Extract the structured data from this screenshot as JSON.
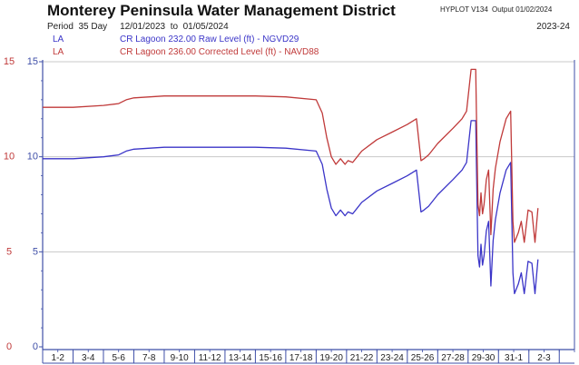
{
  "header": {
    "title": "Monterey Peninsula Water Management District",
    "program": "HYPLOT V134",
    "output": "Output 01/02/2024",
    "period_label": "Period",
    "period_length": "35 Day",
    "period_start": "12/01/2023",
    "period_to": "to",
    "period_end": "01/05/2024",
    "season": "2023-24"
  },
  "colors": {
    "raw": "#3b35c8",
    "corrected": "#c03a3a",
    "axis": "#3f4fa8",
    "grid": "#c8c8c8"
  },
  "chart_data": {
    "type": "line",
    "x_unit": "day index (0 = Dec 1 2023)",
    "xlim": [
      0,
      35
    ],
    "ylim": [
      0,
      15
    ],
    "left_ticks": [
      "0",
      "5",
      "10",
      "15"
    ],
    "inner_ticks": [
      "0",
      "5",
      "10",
      "15"
    ],
    "x_tick_labels": [
      "1-2",
      "3-4",
      "5-6",
      "7-8",
      "9-10",
      "11-12",
      "13-14",
      "15-16",
      "17-18",
      "19-20",
      "21-22",
      "23-24",
      "25-26",
      "27-28",
      "29-30",
      "31-1",
      "2-3"
    ],
    "grid": true,
    "legend_position": "top-left",
    "series": [
      {
        "name": "LA",
        "label": "CR Lagoon  232.00 Raw Level (ft) - NGVD29",
        "color": "#3b35c8",
        "x": [
          0,
          2,
          4,
          5,
          5.5,
          6,
          8,
          10,
          12,
          14,
          16,
          18,
          18.4,
          18.7,
          19,
          19.3,
          19.6,
          19.9,
          20.1,
          20.4,
          20.7,
          21,
          22,
          23,
          24,
          24.6,
          24.9,
          25.1,
          25.4,
          26,
          27,
          27.6,
          27.9,
          28.2,
          28.5,
          28.55,
          28.65,
          28.75,
          28.85,
          28.95,
          29.05,
          29.2,
          29.35,
          29.5,
          29.65,
          29.8,
          30.1,
          30.5,
          30.8,
          30.95,
          31.05,
          31.3,
          31.5,
          31.7,
          31.95,
          32.2,
          32.4,
          32.6
        ],
        "y": [
          9.9,
          9.9,
          10.0,
          10.1,
          10.3,
          10.4,
          10.5,
          10.5,
          10.5,
          10.5,
          10.45,
          10.3,
          9.6,
          8.3,
          7.3,
          6.9,
          7.2,
          6.9,
          7.1,
          7.0,
          7.3,
          7.6,
          8.2,
          8.6,
          9.0,
          9.3,
          7.1,
          7.2,
          7.4,
          8.0,
          8.8,
          9.3,
          9.7,
          11.9,
          11.9,
          9.5,
          4.8,
          4.2,
          5.4,
          4.3,
          4.8,
          6.1,
          6.6,
          3.2,
          5.6,
          6.7,
          8.1,
          9.3,
          9.7,
          3.9,
          2.8,
          3.3,
          3.9,
          2.8,
          4.5,
          4.4,
          2.8,
          4.6
        ]
      },
      {
        "name": "LA",
        "label": "CR Lagoon  236.00 Corrected Level (ft) - NAVD88",
        "color": "#c03a3a",
        "x": [
          0,
          2,
          4,
          5,
          5.5,
          6,
          8,
          10,
          12,
          14,
          16,
          18,
          18.4,
          18.7,
          19,
          19.3,
          19.6,
          19.9,
          20.1,
          20.4,
          20.7,
          21,
          22,
          23,
          24,
          24.6,
          24.9,
          25.1,
          25.4,
          26,
          27,
          27.6,
          27.9,
          28.2,
          28.5,
          28.55,
          28.65,
          28.75,
          28.85,
          28.95,
          29.05,
          29.2,
          29.35,
          29.5,
          29.65,
          29.8,
          30.1,
          30.5,
          30.8,
          30.95,
          31.05,
          31.3,
          31.5,
          31.7,
          31.95,
          32.2,
          32.4,
          32.6
        ],
        "y": [
          12.6,
          12.6,
          12.7,
          12.8,
          13.0,
          13.1,
          13.2,
          13.2,
          13.2,
          13.2,
          13.15,
          13.0,
          12.3,
          11.0,
          10.0,
          9.6,
          9.9,
          9.6,
          9.8,
          9.7,
          10.0,
          10.3,
          10.9,
          11.3,
          11.7,
          12.0,
          9.8,
          9.9,
          10.1,
          10.7,
          11.5,
          12.0,
          12.4,
          14.6,
          14.6,
          12.2,
          7.5,
          6.9,
          8.1,
          7.0,
          7.5,
          8.8,
          9.3,
          5.9,
          8.3,
          9.4,
          10.8,
          12.0,
          12.4,
          6.6,
          5.5,
          6.0,
          6.6,
          5.5,
          7.2,
          7.1,
          5.5,
          7.3
        ]
      }
    ]
  }
}
